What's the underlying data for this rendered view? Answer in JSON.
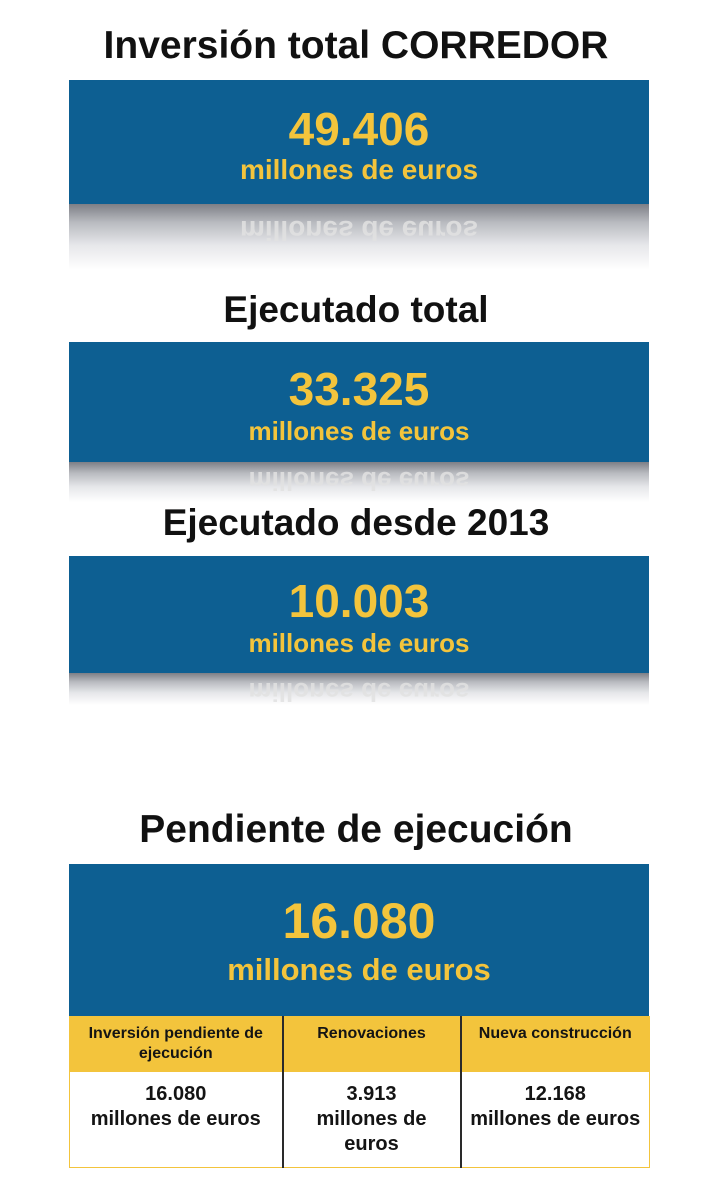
{
  "sections": [
    {
      "title": "Inversión total CORREDOR",
      "value": "49.406",
      "unit": "millones de euros"
    },
    {
      "title": "Ejecutado total",
      "value": "33.325",
      "unit": "millones de euros"
    },
    {
      "title": "Ejecutado desde 2013",
      "value": "10.003",
      "unit": "millones de euros"
    },
    {
      "title": "Pendiente de ejecución",
      "value": "16.080",
      "unit": "millones de euros"
    }
  ],
  "table": {
    "headers": [
      "Inversión pendiente de ejecución",
      "Renovaciones",
      "Nueva construcción"
    ],
    "rows": [
      [
        {
          "value": "16.080",
          "unit": "millones de euros"
        },
        {
          "value": "3.913",
          "unit": "millones de euros"
        },
        {
          "value": "12.168",
          "unit": "millones de euros"
        }
      ]
    ]
  },
  "colors": {
    "panel_blue": "#0d5f92",
    "accent_yellow": "#f3c43c",
    "heading_text": "#111111"
  }
}
